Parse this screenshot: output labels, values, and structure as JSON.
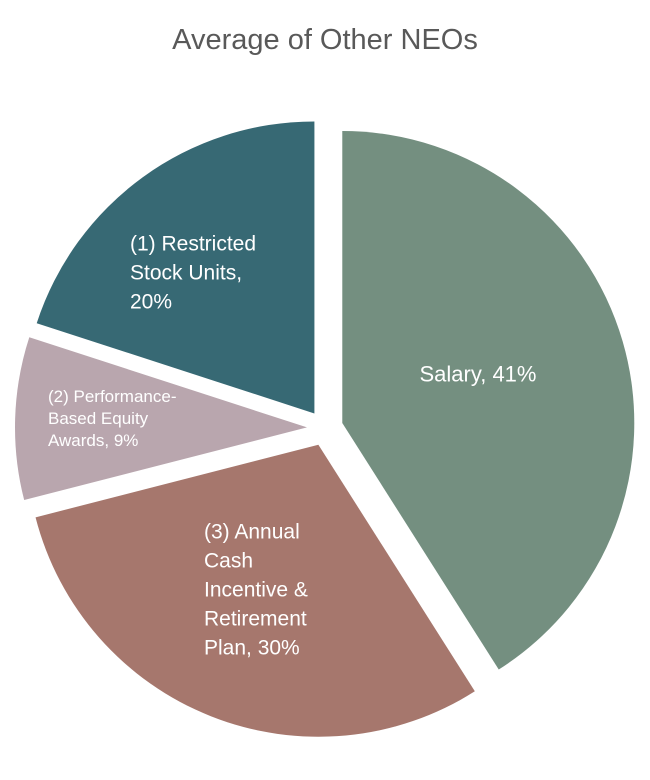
{
  "chart_data": {
    "type": "pie",
    "title": "Average of Other NEOs",
    "slices": [
      {
        "label": "Salary",
        "value": 41,
        "color": "#748f80",
        "display": [
          "Salary, 41%"
        ]
      },
      {
        "label": "(3) Annual Cash Incentive & Retirement Plan",
        "value": 30,
        "color": "#a6776d",
        "display": [
          "(3) Annual",
          "Cash",
          "Incentive &",
          "Retirement",
          "Plan, 30%"
        ]
      },
      {
        "label": "(2) Performance-Based Equity Awards",
        "value": 9,
        "color": "#b9a6ae",
        "display": [
          "(2) Performance-",
          "Based Equity",
          "Awards, 9%"
        ]
      },
      {
        "label": "(1) Restricted Stock Units",
        "value": 20,
        "color": "#376974",
        "display": [
          "(1) Restricted",
          "Stock Units,",
          "20%"
        ]
      }
    ],
    "start_angle_deg": 0,
    "direction": "clockwise",
    "exploded": true
  }
}
